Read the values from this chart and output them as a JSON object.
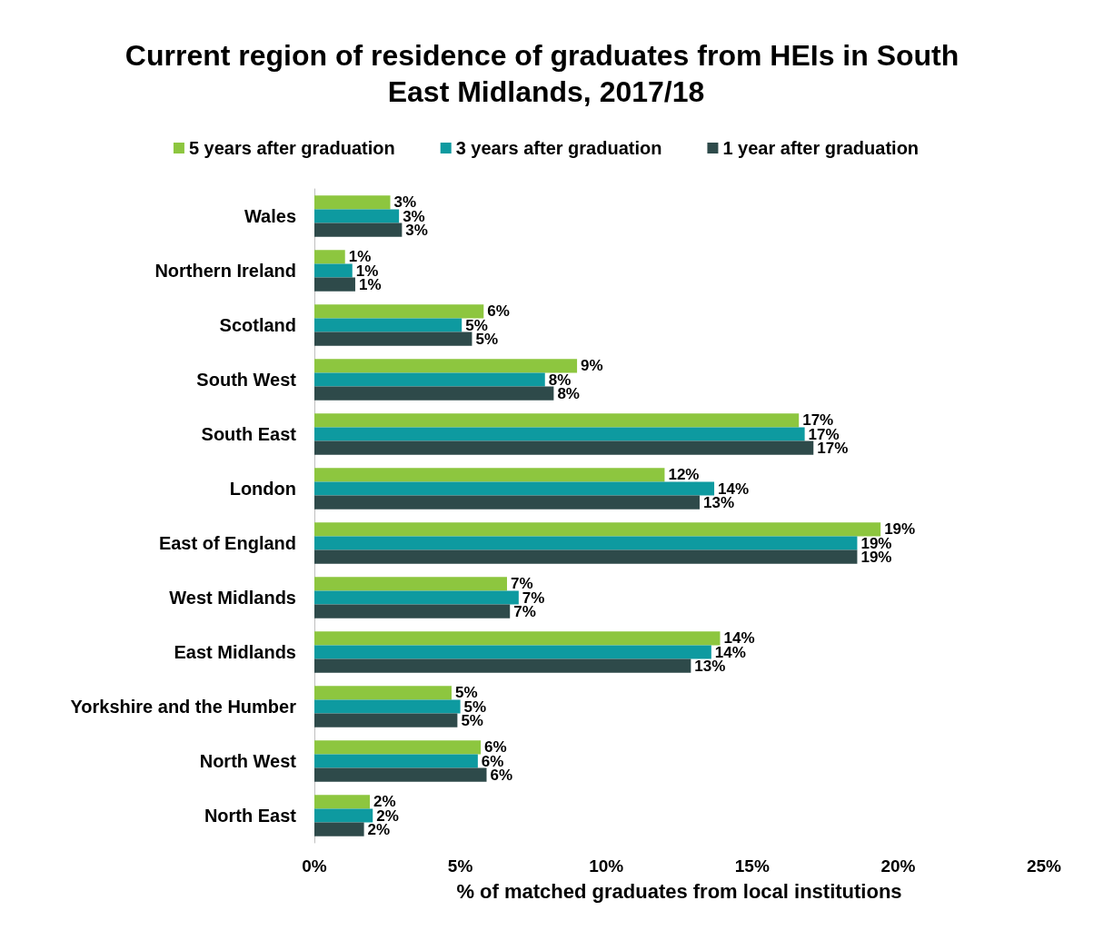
{
  "chart_data": {
    "type": "bar",
    "orientation": "horizontal",
    "title": "Current region of residence of graduates from HEIs in South East Midlands, 2017/18",
    "xlabel": "% of matched graduates from local institutions",
    "categories": [
      "Wales",
      "Northern Ireland",
      "Scotland",
      "South West",
      "South East",
      "London",
      "East of England",
      "West Midlands",
      "East Midlands",
      "Yorkshire and the Humber",
      "North West",
      "North East"
    ],
    "series": [
      {
        "name": "5 years after graduation",
        "color": "#8dc63f",
        "values": [
          2.6,
          1.05,
          5.8,
          9.0,
          16.6,
          12.0,
          19.4,
          6.6,
          13.9,
          4.7,
          5.7,
          1.9
        ],
        "value_labels": [
          "3%",
          "1%",
          "6%",
          "9%",
          "17%",
          "12%",
          "19%",
          "7%",
          "14%",
          "5%",
          "6%",
          "2%"
        ]
      },
      {
        "name": "3 years after graduation",
        "color": "#0e9aa0",
        "values": [
          2.9,
          1.3,
          5.05,
          7.9,
          16.8,
          13.7,
          18.6,
          7.0,
          13.6,
          5.0,
          5.6,
          2.0
        ],
        "value_labels": [
          "3%",
          "1%",
          "5%",
          "8%",
          "17%",
          "14%",
          "19%",
          "7%",
          "14%",
          "5%",
          "6%",
          "2%"
        ]
      },
      {
        "name": "1 year after graduation",
        "color": "#2e4a4a",
        "values": [
          3.0,
          1.4,
          5.4,
          8.2,
          17.1,
          13.2,
          18.6,
          6.7,
          12.9,
          4.9,
          5.9,
          1.7
        ],
        "value_labels": [
          "3%",
          "1%",
          "5%",
          "8%",
          "17%",
          "13%",
          "19%",
          "7%",
          "13%",
          "5%",
          "6%",
          "2%"
        ]
      }
    ],
    "xlim": [
      0,
      25
    ],
    "xticks": [
      {
        "value": 0,
        "label": "0%"
      },
      {
        "value": 5,
        "label": "5%"
      },
      {
        "value": 10,
        "label": "10%"
      },
      {
        "value": 15,
        "label": "15%"
      },
      {
        "value": 20,
        "label": "20%"
      },
      {
        "value": 25,
        "label": "25%"
      }
    ],
    "legend": "top",
    "grid": false
  }
}
